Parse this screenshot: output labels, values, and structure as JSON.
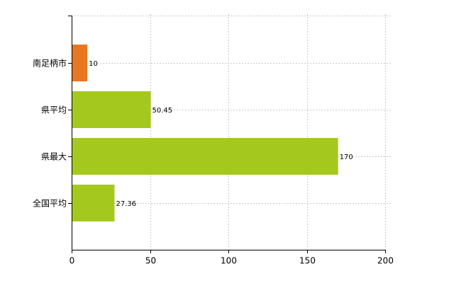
{
  "chart_data": {
    "type": "bar",
    "orientation": "horizontal",
    "categories": [
      "南足柄市",
      "県平均",
      "県最大",
      "全国平均"
    ],
    "values": [
      10,
      50.45,
      170,
      27.36
    ],
    "colors": [
      "#e87722",
      "#a5c81e",
      "#a5c81e",
      "#a5c81e"
    ],
    "xlim": [
      0,
      200
    ],
    "xticks": [
      0,
      50,
      100,
      150,
      200
    ],
    "grid": true
  }
}
